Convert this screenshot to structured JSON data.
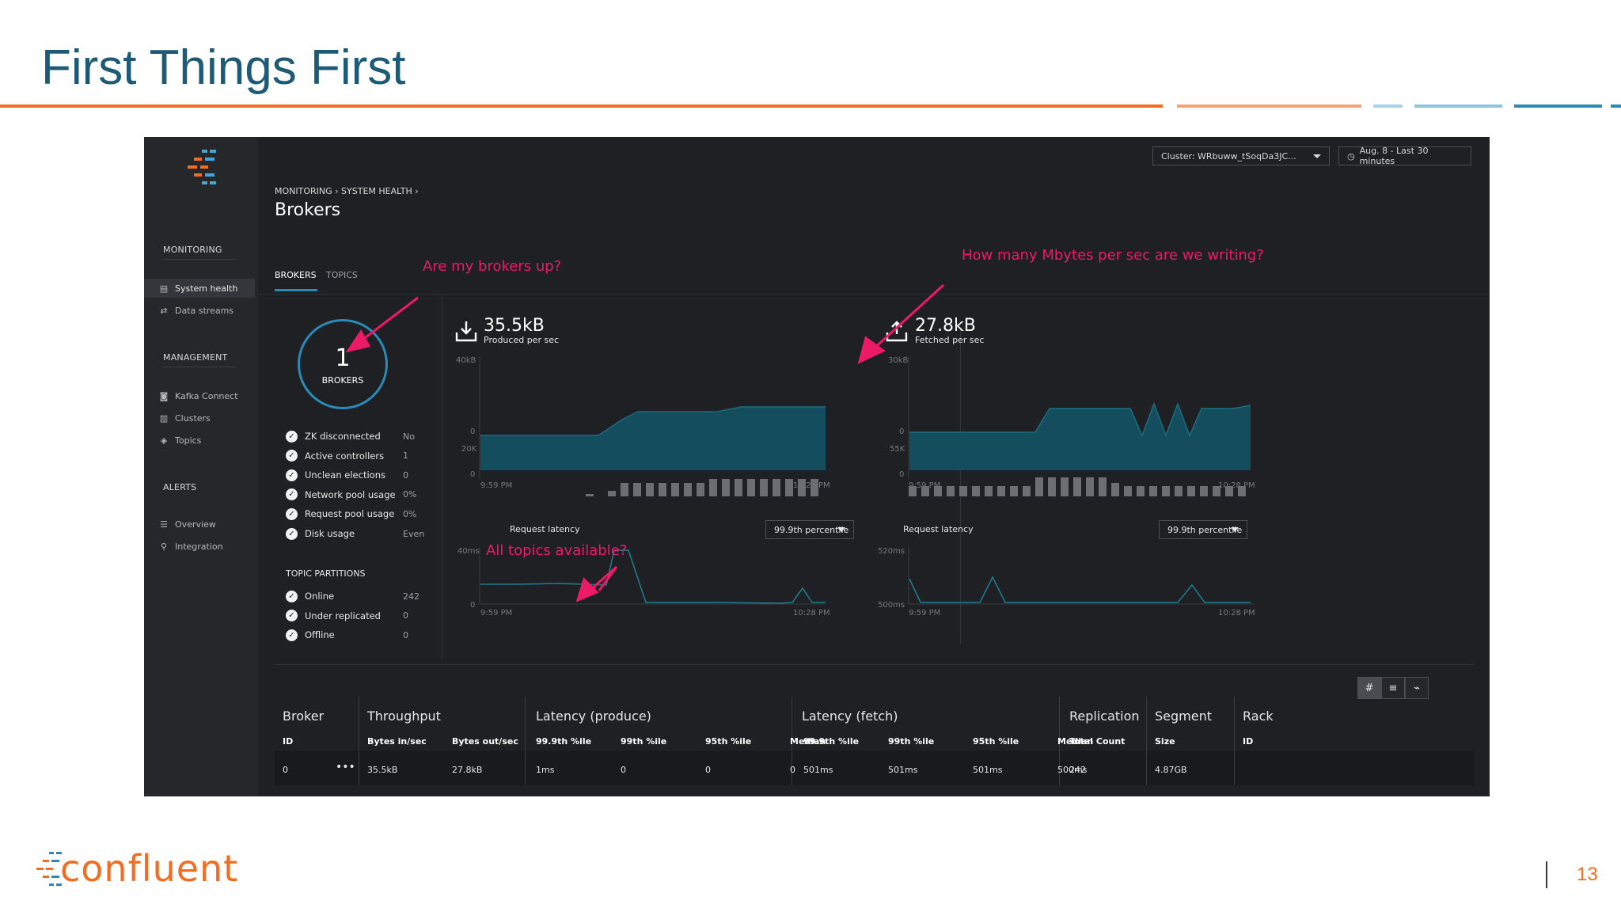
{
  "slide": {
    "title": "First Things First",
    "brand": "confluent",
    "page_number": "13",
    "colors": {
      "title": "#1d5a75",
      "accent_orange": "#f26d21",
      "accent_teal": "#2a8bb8"
    }
  },
  "app": {
    "sidebar": {
      "sections": [
        {
          "label": "MONITORING",
          "items": [
            {
              "label": "System health",
              "icon": "chart-icon",
              "active": true
            },
            {
              "label": "Data streams",
              "icon": "streams-icon",
              "active": false
            }
          ]
        },
        {
          "label": "MANAGEMENT",
          "items": [
            {
              "label": "Kafka Connect",
              "icon": "connect-icon",
              "active": false
            },
            {
              "label": "Clusters",
              "icon": "clusters-icon",
              "active": false
            },
            {
              "label": "Topics",
              "icon": "topics-icon",
              "active": false
            }
          ]
        },
        {
          "label": "ALERTS",
          "items": [
            {
              "label": "Overview",
              "icon": "list-icon",
              "active": false
            },
            {
              "label": "Integration",
              "icon": "integration-icon",
              "active": false
            }
          ]
        }
      ]
    },
    "header": {
      "cluster_select": "Cluster: WRbuww_tSoqDa3JC...",
      "time_range": "Aug. 8 - Last 30 minutes",
      "breadcrumb": [
        "MONITORING",
        "SYSTEM HEALTH"
      ],
      "title": "Brokers"
    },
    "tabs": [
      {
        "label": "BROKERS",
        "active": true
      },
      {
        "label": "TOPICS",
        "active": false
      }
    ],
    "annotations": {
      "brokers_up": "Are my brokers up?",
      "mbytes": "How many Mbytes per sec are we writing?",
      "topics": "All topics available?"
    },
    "brokers": {
      "count": "1",
      "label": "BROKERS",
      "checks": [
        {
          "label": "ZK disconnected",
          "value": "No"
        },
        {
          "label": "Active controllers",
          "value": "1"
        },
        {
          "label": "Unclean elections",
          "value": "0"
        },
        {
          "label": "Network pool usage",
          "value": "0%"
        },
        {
          "label": "Request pool usage",
          "value": "0%"
        },
        {
          "label": "Disk usage",
          "value": "Even"
        }
      ],
      "topic_partitions_title": "TOPIC PARTITIONS",
      "topic_partitions": [
        {
          "label": "Online",
          "value": "242"
        },
        {
          "label": "Under replicated",
          "value": "0"
        },
        {
          "label": "Offline",
          "value": "0"
        }
      ]
    },
    "produced": {
      "value": "35.5kB",
      "label": "Produced per sec",
      "y_top": "40kB",
      "y_zero": "0",
      "bar_top": "20K",
      "bar_zero": "0",
      "x_start": "9:59 PM",
      "x_end": "10:28 PM",
      "latency_label": "Request latency",
      "percentile": "99.9th percentile",
      "lat_top": "40ms",
      "lat_zero": "0"
    },
    "fetched": {
      "value": "27.8kB",
      "label": "Fetched per sec",
      "y_top": "30kB",
      "y_zero": "0",
      "bar_top": "55K",
      "bar_zero": "0",
      "x_start": "9:59 PM",
      "x_end": "10:28 PM",
      "latency_label": "Request latency",
      "percentile": "99.9th percentile",
      "lat_top": "520ms",
      "lat_bottom": "500ms"
    },
    "table": {
      "groups": [
        "Broker",
        "Throughput",
        "Latency (produce)",
        "Latency (fetch)",
        "Replication",
        "Segment",
        "Rack"
      ],
      "subheaders": [
        "ID",
        "Bytes in/sec",
        "Bytes out/sec",
        "99.9th %ile",
        "99th %ile",
        "95th %ile",
        "Median",
        "99.9th %ile",
        "99th %ile",
        "95th %ile",
        "Median",
        "Total Count",
        "Size",
        "ID"
      ],
      "row": [
        "0",
        "35.5kB",
        "27.8kB",
        "1ms",
        "0",
        "0",
        "0",
        "501ms",
        "501ms",
        "501ms",
        "500ms",
        "242",
        "4.87GB",
        ""
      ],
      "view_buttons": [
        "#",
        "≡",
        "⌁"
      ]
    }
  }
}
